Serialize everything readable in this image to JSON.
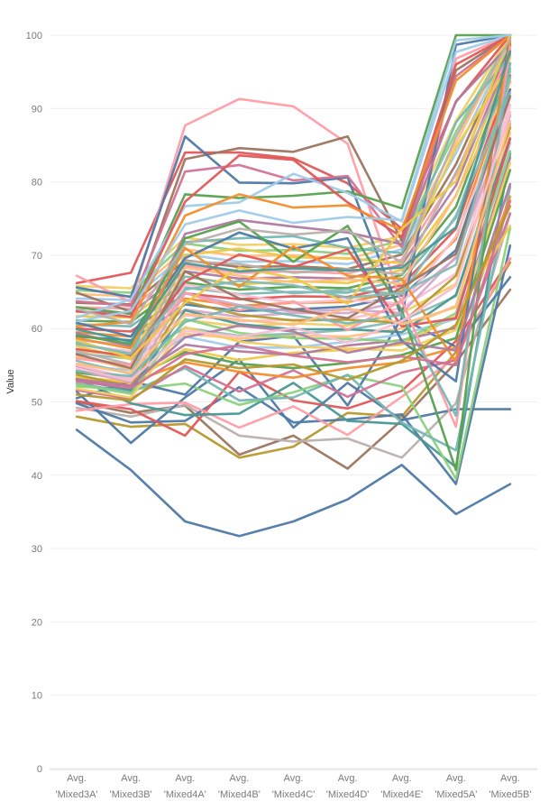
{
  "chart_data": {
    "type": "line",
    "title": "",
    "xlabel": "",
    "ylabel": "Value",
    "ylim": [
      0,
      100
    ],
    "yticks": [
      0,
      10,
      20,
      30,
      40,
      50,
      60,
      70,
      80,
      90,
      100
    ],
    "grid": true,
    "categories": [
      {
        "line1": "Avg.",
        "line2": "'Mixed3A'"
      },
      {
        "line1": "Avg.",
        "line2": "'Mixed3B'"
      },
      {
        "line1": "Avg.",
        "line2": "'Mixed4A'"
      },
      {
        "line1": "Avg.",
        "line2": "'Mixed4B'"
      },
      {
        "line1": "Avg.",
        "line2": "'Mixed4C'"
      },
      {
        "line1": "Avg.",
        "line2": "'Mixed4D'"
      },
      {
        "line1": "Avg.",
        "line2": "'Mixed4E'"
      },
      {
        "line1": "Avg.",
        "line2": "'Mixed5A'"
      },
      {
        "line1": "Avg.",
        "line2": "'Mixed5B'"
      }
    ],
    "palette": [
      "#4e79a7",
      "#f28e2b",
      "#e15759",
      "#76b7b2",
      "#59a14f",
      "#edc948",
      "#b07aa1",
      "#ff9da7",
      "#9c755f",
      "#bab0ac",
      "#a0cbe8",
      "#ffbe7d",
      "#8cd17d",
      "#86bcb6",
      "#f1ce63",
      "#d37295",
      "#fabfd2",
      "#b6992d",
      "#499894",
      "#d4a6c8"
    ],
    "series": [
      {
        "color": "#4e79a7",
        "values": [
          46.2,
          40.7,
          33.7,
          31.7,
          33.7,
          36.7,
          41.4,
          34.7,
          38.8
        ]
      },
      {
        "color": "#b6992d",
        "values": [
          48.0,
          46.6,
          47.0,
          42.4,
          43.9,
          48.5,
          48.0,
          56.8,
          69.0
        ]
      },
      {
        "color": "#9c755f",
        "values": [
          50.0,
          48.5,
          49.5,
          42.8,
          45.4,
          40.9,
          47.5,
          55.4,
          65.3
        ]
      },
      {
        "color": "#bab0ac",
        "values": [
          49.2,
          48.0,
          49.6,
          45.4,
          44.6,
          45.0,
          42.4,
          49.8,
          75.7
        ]
      },
      {
        "color": "#4e79a7",
        "values": [
          51.4,
          44.4,
          50.6,
          55.8,
          46.5,
          52.6,
          47.5,
          49.0,
          49.0
        ]
      },
      {
        "color": "#4e79a7",
        "values": [
          49.8,
          47.2,
          47.4,
          52.0,
          47.2,
          47.6,
          48.3,
          38.8,
          71.3
        ]
      },
      {
        "color": "#e15759",
        "values": [
          50.1,
          49.0,
          45.4,
          54.1,
          50.2,
          49.1,
          51.5,
          58.3,
          69.5
        ]
      },
      {
        "color": "#ff9da7",
        "values": [
          48.8,
          49.7,
          49.9,
          46.5,
          49.4,
          45.5,
          50.7,
          56.1,
          69.6
        ]
      },
      {
        "color": "#499894",
        "values": [
          53.2,
          49.8,
          48.2,
          48.4,
          52.6,
          47.4,
          47.0,
          41.1,
          83.9
        ]
      },
      {
        "color": "#8cd17d",
        "values": [
          52.1,
          51.7,
          52.5,
          49.6,
          51.3,
          53.6,
          52.1,
          39.5,
          73.7
        ]
      },
      {
        "color": "#4e79a7",
        "values": [
          50.5,
          52.8,
          51.0,
          58.2,
          59.0,
          49.5,
          61.4,
          57.5,
          67.0
        ]
      },
      {
        "color": "#76b7b2",
        "values": [
          52.5,
          51.3,
          54.6,
          50.2,
          50.6,
          53.7,
          47.2,
          43.4,
          79.3
        ]
      },
      {
        "color": "#d37295",
        "values": [
          51.6,
          50.4,
          54.9,
          51.4,
          54.3,
          50.7,
          54.0,
          55.7,
          75.7
        ]
      },
      {
        "color": "#f28e2b",
        "values": [
          53.4,
          52.6,
          55.4,
          54.1,
          53.3,
          54.6,
          55.4,
          57.4,
          78.0
        ]
      },
      {
        "color": "#59a14f",
        "values": [
          54.0,
          53.1,
          56.8,
          55.2,
          54.6,
          55.3,
          56.4,
          58.7,
          81.6
        ]
      },
      {
        "color": "#edc948",
        "values": [
          53.4,
          52.7,
          57.2,
          55.7,
          56.7,
          57.1,
          57.8,
          61.7,
          74.0
        ]
      },
      {
        "color": "#b07aa1",
        "values": [
          54.9,
          53.1,
          57.8,
          56.9,
          56.4,
          57.7,
          58.4,
          60.1,
          83.3
        ]
      },
      {
        "color": "#a0cbe8",
        "values": [
          55.0,
          54.3,
          58.9,
          57.4,
          57.4,
          58.2,
          59.2,
          61.3,
          85.3
        ]
      },
      {
        "color": "#ffbe7d",
        "values": [
          56.0,
          55.1,
          59.3,
          58.6,
          59.1,
          58.9,
          60.0,
          63.1,
          86.7
        ]
      },
      {
        "color": "#86bcb6",
        "values": [
          56.6,
          55.9,
          60.1,
          59.0,
          59.3,
          59.8,
          61.1,
          64.4,
          87.9
        ]
      },
      {
        "color": "#f1ce63",
        "values": [
          57.0,
          56.3,
          61.2,
          60.3,
          60.7,
          60.4,
          62.1,
          66.1,
          89.3
        ]
      },
      {
        "color": "#fabfd2",
        "values": [
          57.8,
          56.9,
          61.8,
          61.0,
          61.2,
          61.3,
          62.8,
          67.5,
          90.4
        ]
      },
      {
        "color": "#d4a6c8",
        "values": [
          58.5,
          57.6,
          62.6,
          61.6,
          62.1,
          62.1,
          63.7,
          69.6,
          91.5
        ]
      },
      {
        "color": "#4e79a7",
        "values": [
          58.9,
          58.4,
          63.3,
          62.4,
          62.6,
          63.0,
          64.5,
          70.7,
          92.6
        ]
      },
      {
        "color": "#f28e2b",
        "values": [
          59.5,
          58.9,
          64.1,
          63.1,
          63.5,
          63.6,
          65.1,
          72.2,
          93.7
        ]
      },
      {
        "color": "#e15759",
        "values": [
          60.0,
          59.6,
          64.8,
          64.0,
          64.4,
          64.3,
          65.9,
          73.6,
          94.5
        ]
      },
      {
        "color": "#76b7b2",
        "values": [
          60.6,
          60.3,
          65.6,
          64.7,
          65.0,
          64.9,
          66.6,
          75.1,
          95.4
        ]
      },
      {
        "color": "#59a14f",
        "values": [
          61.1,
          60.9,
          66.3,
          65.3,
          65.7,
          65.5,
          67.3,
          76.6,
          96.1
        ]
      },
      {
        "color": "#edc948",
        "values": [
          61.7,
          61.5,
          67.1,
          66.0,
          66.5,
          66.2,
          68.0,
          78.1,
          96.9
        ]
      },
      {
        "color": "#b07aa1",
        "values": [
          62.3,
          62.1,
          67.8,
          66.8,
          67.0,
          66.8,
          68.7,
          79.5,
          97.5
        ]
      },
      {
        "color": "#ff9da7",
        "values": [
          62.9,
          62.7,
          68.6,
          67.6,
          67.8,
          67.5,
          69.4,
          81.0,
          98.1
        ]
      },
      {
        "color": "#9c755f",
        "values": [
          63.5,
          63.3,
          69.3,
          68.4,
          68.5,
          68.1,
          70.1,
          82.4,
          98.6
        ]
      },
      {
        "color": "#a0cbe8",
        "values": [
          64.1,
          63.9,
          70.1,
          69.1,
          69.2,
          68.8,
          70.8,
          83.9,
          99.0
        ]
      },
      {
        "color": "#ffbe7d",
        "values": [
          64.7,
          64.4,
          70.8,
          69.9,
          70.0,
          69.5,
          71.4,
          85.3,
          99.4
        ]
      },
      {
        "color": "#8cd17d",
        "values": [
          65.2,
          64.9,
          71.6,
          70.6,
          70.7,
          70.2,
          72.0,
          86.8,
          99.7
        ]
      },
      {
        "color": "#f1ce63",
        "values": [
          65.8,
          65.5,
          72.4,
          71.4,
          71.5,
          71.0,
          72.6,
          88.3,
          100.0
        ]
      },
      {
        "color": "#e15759",
        "values": [
          66.2,
          67.6,
          84.0,
          84.0,
          83.2,
          79.8,
          73.6,
          90.9,
          100.0
        ]
      },
      {
        "color": "#ff9da7",
        "values": [
          67.2,
          63.6,
          87.7,
          91.3,
          90.3,
          85.2,
          63.4,
          96.8,
          100.0
        ]
      },
      {
        "color": "#9c755f",
        "values": [
          64.9,
          62.3,
          83.1,
          84.6,
          84.1,
          86.2,
          72.0,
          95.2,
          100.0
        ]
      },
      {
        "color": "#4e79a7",
        "values": [
          65.6,
          64.3,
          86.2,
          79.9,
          79.8,
          80.6,
          61.6,
          98.7,
          100.0
        ]
      },
      {
        "color": "#d37295",
        "values": [
          63.7,
          63.1,
          81.4,
          82.3,
          80.2,
          80.8,
          71.1,
          94.4,
          100.0
        ]
      },
      {
        "color": "#59a14f",
        "values": [
          62.9,
          62.0,
          78.3,
          77.8,
          78.1,
          78.7,
          76.4,
          100.0,
          100.0
        ]
      },
      {
        "color": "#a0cbe8",
        "values": [
          61.5,
          64.0,
          76.7,
          77.2,
          81.1,
          78.5,
          74.6,
          97.7,
          100.0
        ]
      },
      {
        "color": "#e15759",
        "values": [
          62.4,
          61.6,
          77.3,
          83.6,
          83.0,
          77.2,
          72.5,
          96.0,
          100.0
        ]
      },
      {
        "color": "#f28e2b",
        "values": [
          60.3,
          60.9,
          75.4,
          78.3,
          76.5,
          76.8,
          73.4,
          93.8,
          100.0
        ]
      },
      {
        "color": "#b07aa1",
        "values": [
          59.4,
          57.6,
          72.9,
          74.8,
          73.9,
          73.1,
          71.5,
          91.0,
          98.8
        ]
      },
      {
        "color": "#76b7b2",
        "values": [
          58.1,
          56.5,
          71.8,
          72.3,
          72.6,
          71.0,
          70.3,
          88.1,
          97.2
        ]
      },
      {
        "color": "#edc948",
        "values": [
          57.6,
          55.8,
          70.0,
          70.9,
          69.7,
          69.6,
          68.9,
          84.7,
          96.1
        ]
      },
      {
        "color": "#bab0ac",
        "values": [
          56.9,
          55.1,
          69.2,
          68.8,
          67.6,
          68.1,
          67.4,
          81.3,
          95.0
        ]
      },
      {
        "color": "#ffbe7d",
        "values": [
          56.3,
          54.4,
          68.3,
          67.2,
          66.3,
          66.7,
          66.1,
          78.2,
          93.6
        ]
      },
      {
        "color": "#86bcb6",
        "values": [
          55.6,
          53.8,
          67.1,
          65.9,
          64.8,
          65.3,
          64.7,
          75.4,
          92.1
        ]
      },
      {
        "color": "#fabfd2",
        "values": [
          55.0,
          53.2,
          66.0,
          64.6,
          63.5,
          63.9,
          63.4,
          72.6,
          90.5
        ]
      },
      {
        "color": "#d4a6c8",
        "values": [
          54.3,
          52.7,
          64.8,
          63.2,
          62.3,
          62.6,
          62.1,
          69.8,
          89.0
        ]
      },
      {
        "color": "#b6992d",
        "values": [
          53.7,
          52.1,
          63.7,
          61.9,
          61.1,
          61.2,
          60.8,
          67.2,
          87.4
        ]
      },
      {
        "color": "#499894",
        "values": [
          53.0,
          51.6,
          62.5,
          60.6,
          59.9,
          59.9,
          59.5,
          64.6,
          85.9
        ]
      },
      {
        "color": "#8cd17d",
        "values": [
          52.4,
          51.1,
          61.3,
          59.4,
          58.7,
          58.6,
          58.2,
          62.1,
          84.2
        ]
      },
      {
        "color": "#f1ce63",
        "values": [
          51.8,
          50.6,
          60.2,
          58.2,
          57.5,
          57.3,
          57.0,
          59.8,
          82.6
        ]
      },
      {
        "color": "#4e79a7",
        "values": [
          60.8,
          58.9,
          69.6,
          73.1,
          70.9,
          72.3,
          58.3,
          52.8,
          100.0
        ]
      },
      {
        "color": "#e15759",
        "values": [
          57.2,
          56.2,
          66.4,
          70.1,
          68.4,
          70.8,
          60.3,
          61.4,
          85.9
        ]
      },
      {
        "color": "#59a14f",
        "values": [
          59.1,
          57.9,
          72.3,
          74.6,
          69.1,
          74.0,
          62.5,
          40.7,
          100.0
        ]
      },
      {
        "color": "#f28e2b",
        "values": [
          58.7,
          57.3,
          71.0,
          65.7,
          71.2,
          67.2,
          66.8,
          55.4,
          99.2
        ]
      },
      {
        "color": "#ff9da7",
        "values": [
          55.9,
          55.0,
          64.9,
          62.5,
          63.7,
          59.8,
          63.8,
          46.6,
          98.4
        ]
      },
      {
        "color": "#9c755f",
        "values": [
          56.5,
          54.6,
          67.8,
          64.1,
          62.6,
          61.4,
          65.6,
          70.2,
          91.7
        ]
      },
      {
        "color": "#76b7b2",
        "values": [
          54.2,
          53.5,
          60.9,
          63.0,
          61.8,
          60.7,
          61.9,
          48.1,
          96.2
        ]
      },
      {
        "color": "#edc948",
        "values": [
          58.4,
          56.0,
          63.5,
          68.3,
          66.9,
          63.4,
          73.6,
          80.1,
          100.0
        ]
      },
      {
        "color": "#a0cbe8",
        "values": [
          61.0,
          62.4,
          74.2,
          76.1,
          74.4,
          75.2,
          74.8,
          99.3,
          100.0
        ]
      },
      {
        "color": "#b07aa1",
        "values": [
          53.1,
          52.2,
          58.8,
          60.4,
          59.6,
          56.7,
          58.1,
          57.0,
          79.7
        ]
      },
      {
        "color": "#d37295",
        "values": [
          52.8,
          51.9,
          56.5,
          57.7,
          56.3,
          55.4,
          56.2,
          55.0,
          77.4
        ]
      },
      {
        "color": "#ffbe7d",
        "values": [
          55.2,
          53.9,
          62.0,
          61.2,
          60.5,
          62.8,
          60.6,
          62.9,
          88.3
        ]
      },
      {
        "color": "#86bcb6",
        "values": [
          57.9,
          56.6,
          65.3,
          66.5,
          65.9,
          64.2,
          64.9,
          68.7,
          94.2
        ]
      },
      {
        "color": "#499894",
        "values": [
          59.9,
          58.2,
          68.9,
          67.8,
          68.2,
          67.9,
          68.3,
          73.8,
          97.8
        ]
      },
      {
        "color": "#bab0ac",
        "values": [
          62.7,
          60.6,
          71.5,
          73.6,
          72.8,
          73.4,
          69.0,
          86.1,
          99.5
        ]
      },
      {
        "color": "#fabfd2",
        "values": [
          54.6,
          52.9,
          59.7,
          58.9,
          60.1,
          58.1,
          61.0,
          65.8,
          89.6
        ]
      },
      {
        "color": "#b6992d",
        "values": [
          51.0,
          50.2,
          55.8,
          54.6,
          55.1,
          53.0,
          55.6,
          60.5,
          76.7
        ]
      }
    ]
  }
}
